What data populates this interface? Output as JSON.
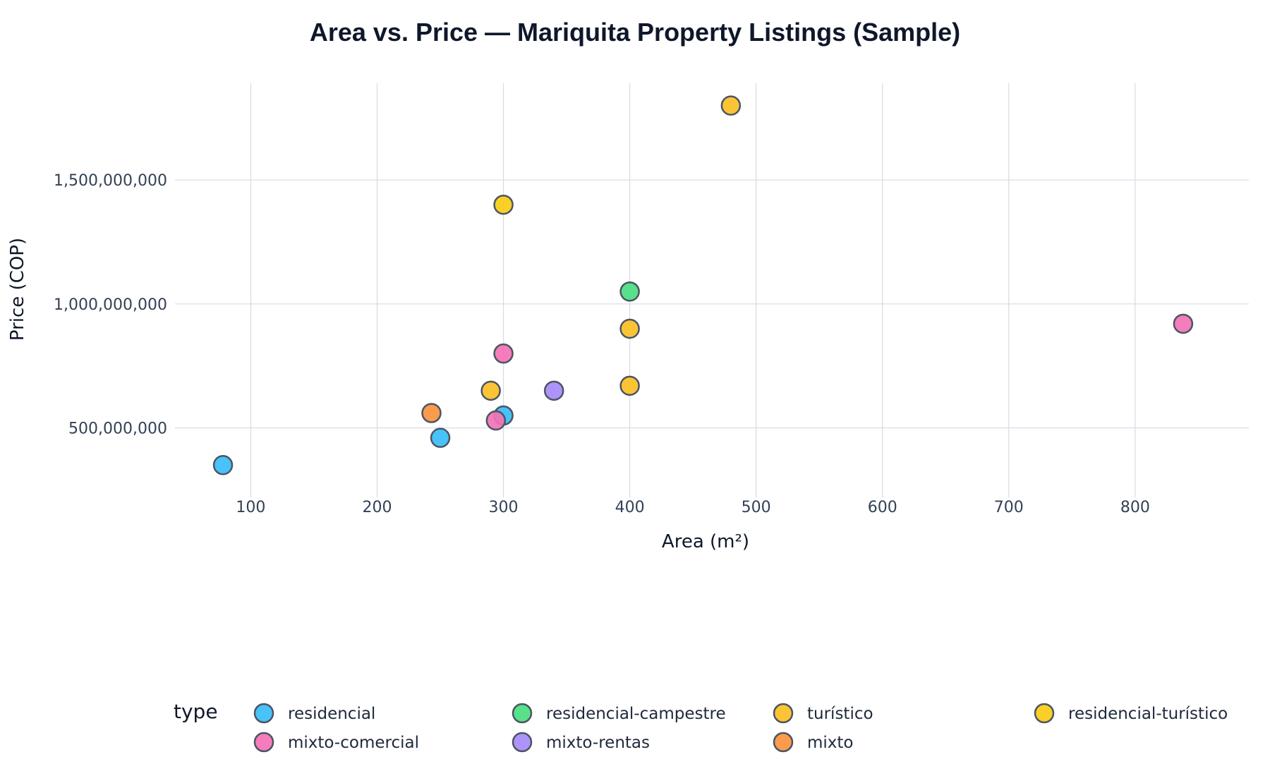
{
  "chart_data": {
    "type": "scatter",
    "title": "Area vs. Price — Mariquita Property Listings (Sample)",
    "xlabel": "Area (m²)",
    "ylabel": "Price (COP)",
    "xlim": [
      40,
      890
    ],
    "ylim": [
      220000000,
      1890000000
    ],
    "x_ticks": [
      100,
      200,
      300,
      400,
      500,
      600,
      700,
      800
    ],
    "x_tick_labels": [
      "100",
      "200",
      "300",
      "400",
      "500",
      "600",
      "700",
      "800"
    ],
    "y_ticks": [
      500000000,
      1000000000,
      1500000000
    ],
    "y_tick_labels": [
      "500,000,000",
      "1,000,000,000",
      "1,500,000,000"
    ],
    "grid": true,
    "legend": {
      "title": "type",
      "placement": "bottom"
    },
    "series": [
      {
        "name": "residencial",
        "color": "#38bdf8",
        "points": [
          {
            "x": 78,
            "y": 350000000
          },
          {
            "x": 250,
            "y": 460000000
          },
          {
            "x": 300,
            "y": 550000000
          }
        ]
      },
      {
        "name": "residencial-campestre",
        "color": "#4ade80",
        "points": [
          {
            "x": 400,
            "y": 1050000000
          }
        ]
      },
      {
        "name": "turístico",
        "color": "#fbbf24",
        "points": [
          {
            "x": 290,
            "y": 650000000
          },
          {
            "x": 400,
            "y": 900000000
          },
          {
            "x": 400,
            "y": 670000000
          },
          {
            "x": 480,
            "y": 1800000000
          }
        ]
      },
      {
        "name": "residencial-turístico",
        "color": "#facc15",
        "points": [
          {
            "x": 300,
            "y": 1400000000
          }
        ]
      },
      {
        "name": "mixto-comercial",
        "color": "#f472b6",
        "points": [
          {
            "x": 300,
            "y": 800000000
          },
          {
            "x": 294,
            "y": 530000000
          },
          {
            "x": 838,
            "y": 920000000
          }
        ]
      },
      {
        "name": "mixto-rentas",
        "color": "#a78bfa",
        "points": [
          {
            "x": 340,
            "y": 650000000
          }
        ]
      },
      {
        "name": "mixto",
        "color": "#fb923c",
        "points": [
          {
            "x": 243,
            "y": 560000000
          }
        ]
      }
    ]
  }
}
